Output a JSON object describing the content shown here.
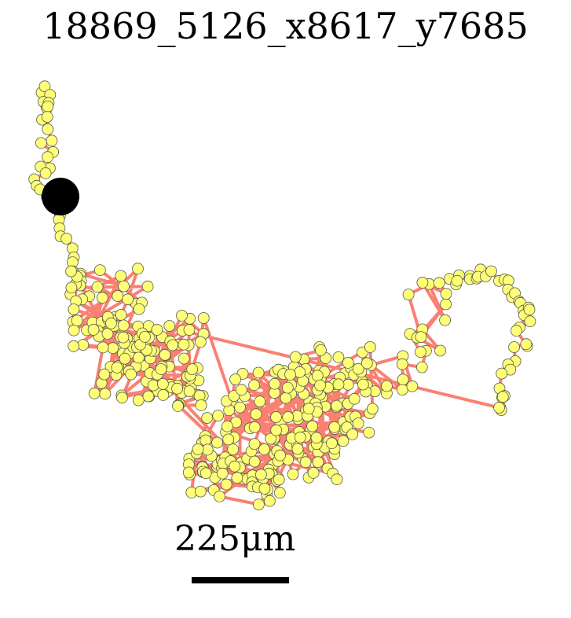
{
  "title": "18869_5126_x8617_y7685",
  "scale_label": "225μm",
  "colors": {
    "track": "#fa8072",
    "point_fill": "#ffff77",
    "point_stroke": "#555555",
    "origin": "#000000"
  }
}
